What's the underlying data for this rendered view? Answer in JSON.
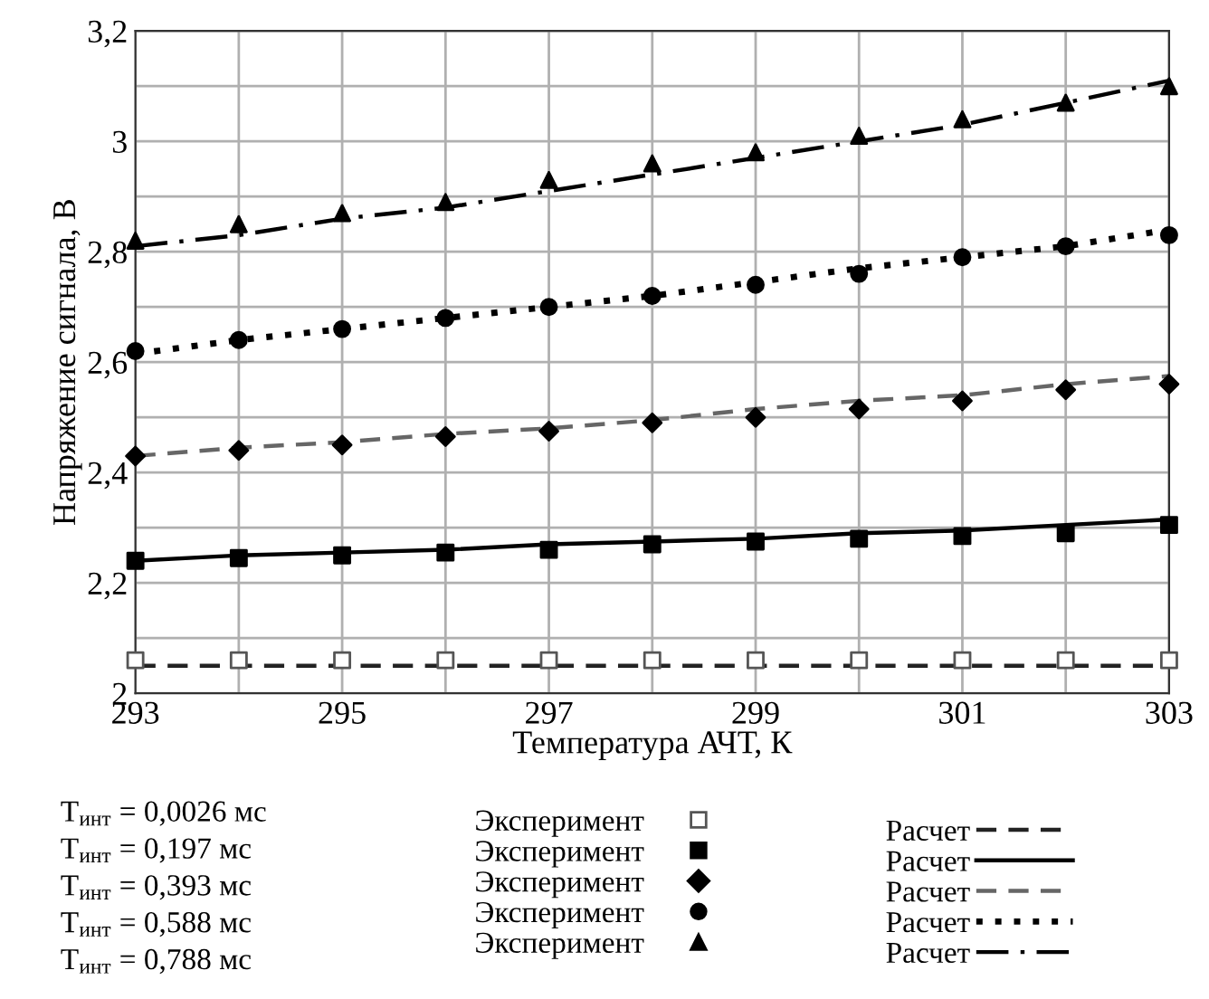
{
  "chart_data": {
    "type": "line",
    "xlabel": "Температура АЧТ, К",
    "ylabel": "Напряжение сигнала, В",
    "x": [
      293,
      294,
      295,
      296,
      297,
      298,
      299,
      300,
      301,
      302,
      303
    ],
    "xlim": [
      293,
      303
    ],
    "xticks": [
      293,
      {
        "value": 294,
        "label": null
      },
      295,
      {
        "value": 296,
        "label": null
      },
      297,
      {
        "value": 298,
        "label": null
      },
      299,
      {
        "value": 300,
        "label": null
      },
      301,
      {
        "value": 302,
        "label": null
      },
      303
    ],
    "ylim": [
      2,
      3.2
    ],
    "yticks": [
      2,
      {
        "value": 2.1,
        "label": null
      },
      {
        "value": 2.2,
        "label": "2,2"
      },
      {
        "value": 2.3,
        "label": null
      },
      {
        "value": 2.4,
        "label": "2,4"
      },
      {
        "value": 2.5,
        "label": null
      },
      {
        "value": 2.6,
        "label": "2,6"
      },
      {
        "value": 2.7,
        "label": null
      },
      {
        "value": 2.8,
        "label": "2,8"
      },
      {
        "value": 2.9,
        "label": null
      },
      3,
      {
        "value": 3.1,
        "label": null
      },
      {
        "value": 3.2,
        "label": "3,2"
      }
    ],
    "grid": true,
    "legend": "bottom",
    "series": [
      {
        "name": "Эксперимент",
        "type": "scatter",
        "marker": "square-open",
        "color": "#555555",
        "values": [
          2.06,
          2.06,
          2.06,
          2.06,
          2.06,
          2.06,
          2.06,
          2.06,
          2.06,
          2.06,
          2.06
        ]
      },
      {
        "name": "Эксперимент",
        "type": "scatter",
        "marker": "square",
        "color": "#000000",
        "values": [
          2.24,
          2.245,
          2.25,
          2.255,
          2.26,
          2.27,
          2.275,
          2.28,
          2.285,
          2.29,
          2.305
        ]
      },
      {
        "name": "Эксперимент",
        "type": "scatter",
        "marker": "diamond",
        "color": "#000000",
        "values": [
          2.43,
          2.44,
          2.45,
          2.465,
          2.475,
          2.49,
          2.5,
          2.515,
          2.53,
          2.55,
          2.56
        ]
      },
      {
        "name": "Эксперимент",
        "type": "scatter",
        "marker": "circle",
        "color": "#000000",
        "values": [
          2.62,
          2.64,
          2.66,
          2.68,
          2.7,
          2.72,
          2.74,
          2.76,
          2.79,
          2.81,
          2.83
        ]
      },
      {
        "name": "Эксперимент",
        "type": "scatter",
        "marker": "triangle",
        "color": "#000000",
        "values": [
          2.82,
          2.85,
          2.87,
          2.89,
          2.93,
          2.96,
          2.98,
          3.01,
          3.04,
          3.07,
          3.1
        ]
      },
      {
        "name": "Расчет",
        "line_style": "dashed",
        "color": "#222222",
        "values": [
          2.05,
          2.05,
          2.05,
          2.05,
          2.05,
          2.05,
          2.05,
          2.05,
          2.05,
          2.05,
          2.05
        ]
      },
      {
        "name": "Расчет",
        "line_style": "solid",
        "color": "#000000",
        "values": [
          2.24,
          2.25,
          2.255,
          2.26,
          2.27,
          2.275,
          2.28,
          2.29,
          2.295,
          2.305,
          2.315
        ]
      },
      {
        "name": "Расчет",
        "line_style": "dashed",
        "color": "#666666",
        "values": [
          2.43,
          2.445,
          2.455,
          2.47,
          2.48,
          2.495,
          2.515,
          2.53,
          2.54,
          2.56,
          2.575
        ]
      },
      {
        "name": "Расчет",
        "line_style": "dotted",
        "color": "#000000",
        "values": [
          2.615,
          2.64,
          2.66,
          2.68,
          2.7,
          2.72,
          2.745,
          2.77,
          2.79,
          2.81,
          2.84
        ]
      },
      {
        "name": "Расчет",
        "line_style": "dashdot",
        "color": "#000000",
        "values": [
          2.81,
          2.83,
          2.86,
          2.88,
          2.91,
          2.94,
          2.97,
          3.0,
          3.03,
          3.07,
          3.11
        ]
      }
    ],
    "annotations": [
      "T$_{инт}$ = 0,0026 мс",
      "T$_{инт}$ = 0,197 мс",
      "T$_{инт}$ = 0,393 мс",
      "T$_{инт}$ = 0,588 мс",
      "T$_{инт}$ = 0,788 мс"
    ]
  }
}
